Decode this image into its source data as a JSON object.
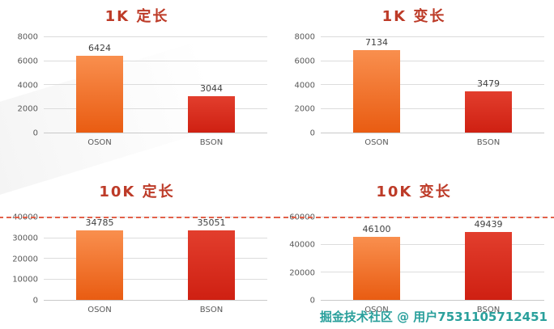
{
  "page": {
    "watermark": "掘金技术社区 @ 用户7531105712451"
  },
  "colors": {
    "oson_top": "#f98f4e",
    "oson_bottom": "#e95c12",
    "bson_top": "#e23e2d",
    "bson_bottom": "#cf2012",
    "title": "#bd3b28",
    "axis_text": "#595959",
    "value_text": "#3f3f3f",
    "gridline": "#dcdcdc",
    "dashed_line": "#e2614a",
    "watermark": "#2aa09c"
  },
  "chart_data": [
    {
      "type": "bar",
      "title": "1K 定长",
      "categories": [
        "OSON",
        "BSON"
      ],
      "values": [
        6424,
        3044
      ],
      "ylim": [
        0,
        8000
      ],
      "yticks": [
        0,
        2000,
        4000,
        6000,
        8000
      ],
      "grid": true,
      "legend": "none",
      "dashed_top_line": false
    },
    {
      "type": "bar",
      "title": "1K 变长",
      "categories": [
        "OSON",
        "BSON"
      ],
      "values": [
        7134,
        3479
      ],
      "ylim": [
        0,
        8000
      ],
      "yticks": [
        0,
        2000,
        4000,
        6000,
        8000
      ],
      "grid": true,
      "legend": "none",
      "dashed_top_line": false
    },
    {
      "type": "bar",
      "title": "10K 定长",
      "categories": [
        "OSON",
        "BSON"
      ],
      "values": [
        34785,
        35051
      ],
      "ylim": [
        0,
        40000
      ],
      "yticks": [
        0,
        10000,
        20000,
        30000,
        40000
      ],
      "grid": true,
      "legend": "none",
      "dashed_top_line": true
    },
    {
      "type": "bar",
      "title": "10K 变长",
      "categories": [
        "OSON",
        "BSON"
      ],
      "values": [
        46100,
        49439
      ],
      "ylim": [
        0,
        60000
      ],
      "yticks": [
        0,
        20000,
        40000,
        60000
      ],
      "grid": true,
      "legend": "none",
      "dashed_top_line": true
    }
  ]
}
